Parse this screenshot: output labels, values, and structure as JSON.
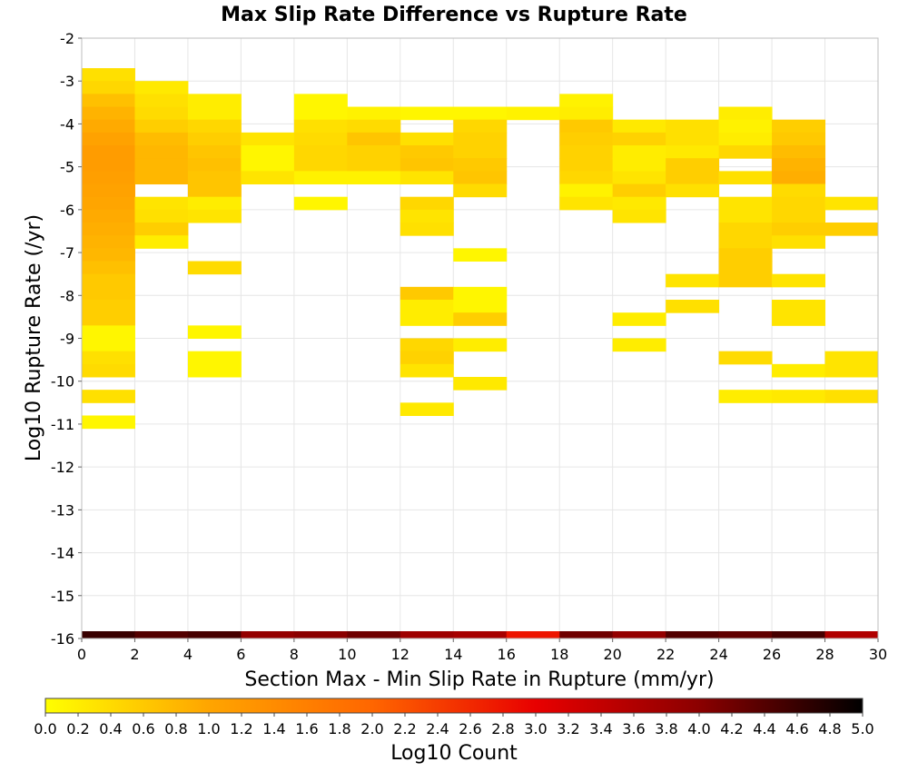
{
  "chart_data": {
    "type": "heatmap",
    "title": "Max Slip Rate Difference vs Rupture Rate",
    "xlabel": "Section Max - Min Slip Rate in Rupture (mm/yr)",
    "ylabel": "Log10 Rupture Rate (/yr)",
    "xlim": [
      0,
      30
    ],
    "ylim": [
      -16,
      -2
    ],
    "x_ticks": [
      "0",
      "2",
      "4",
      "6",
      "8",
      "10",
      "12",
      "14",
      "16",
      "18",
      "20",
      "22",
      "24",
      "26",
      "28",
      "30"
    ],
    "y_ticks": [
      "-2",
      "-3",
      "-4",
      "-5",
      "-6",
      "-7",
      "-8",
      "-9",
      "-10",
      "-11",
      "-12",
      "-13",
      "-14",
      "-15",
      "-16"
    ],
    "x_bin_width": 2,
    "y_bin_height": 0.3,
    "grid": true,
    "colorbar": {
      "label": "Log10 Count",
      "range": [
        0,
        5
      ],
      "ticks": [
        "0.0",
        "0.2",
        "0.4",
        "0.6",
        "0.8",
        "1.0",
        "1.2",
        "1.4",
        "1.6",
        "1.8",
        "2.0",
        "2.2",
        "2.4",
        "2.6",
        "2.8",
        "3.0",
        "3.2",
        "3.4",
        "3.6",
        "3.8",
        "4.0",
        "4.2",
        "4.4",
        "4.6",
        "4.8",
        "5.0"
      ],
      "colors": [
        "#ffff00",
        "#ffa500",
        "#ff6600",
        "#e80000",
        "#8b0000",
        "#000000"
      ]
    },
    "bottom_row": {
      "label": "-16",
      "values": [
        4.6,
        4.4,
        4.5,
        3.9,
        4.0,
        4.2,
        3.8,
        3.7,
        2.8,
        4.2,
        3.9,
        4.4,
        4.3,
        4.5,
        3.6
      ]
    },
    "columns": [
      {
        "x": 0,
        "cells": [
          [
            -2.85,
            0.35
          ],
          [
            -3.15,
            0.45
          ],
          [
            -3.45,
            0.7
          ],
          [
            -3.75,
            0.85
          ],
          [
            -4.05,
            0.95
          ],
          [
            -4.35,
            1.05
          ],
          [
            -4.65,
            1.15
          ],
          [
            -4.95,
            1.15
          ],
          [
            -5.25,
            1.1
          ],
          [
            -5.55,
            1.05
          ],
          [
            -5.85,
            1.0
          ],
          [
            -6.15,
            0.95
          ],
          [
            -6.45,
            0.9
          ],
          [
            -6.75,
            0.85
          ],
          [
            -7.05,
            0.8
          ],
          [
            -7.35,
            0.7
          ],
          [
            -7.65,
            0.6
          ],
          [
            -7.95,
            0.6
          ],
          [
            -8.25,
            0.55
          ],
          [
            -8.55,
            0.55
          ],
          [
            -8.85,
            0.1
          ],
          [
            -9.15,
            0.1
          ],
          [
            -9.45,
            0.35
          ],
          [
            -9.75,
            0.4
          ],
          [
            -10.35,
            0.35
          ],
          [
            -10.95,
            0.1
          ]
        ]
      },
      {
        "x": 2,
        "cells": [
          [
            -3.15,
            0.25
          ],
          [
            -3.45,
            0.35
          ],
          [
            -3.75,
            0.4
          ],
          [
            -4.05,
            0.55
          ],
          [
            -4.35,
            0.75
          ],
          [
            -4.65,
            0.8
          ],
          [
            -4.95,
            0.8
          ],
          [
            -5.25,
            0.8
          ],
          [
            -5.85,
            0.3
          ],
          [
            -6.15,
            0.35
          ],
          [
            -6.45,
            0.55
          ],
          [
            -6.75,
            0.2
          ]
        ]
      },
      {
        "x": 4,
        "cells": [
          [
            -3.45,
            0.2
          ],
          [
            -3.75,
            0.2
          ],
          [
            -4.05,
            0.45
          ],
          [
            -4.35,
            0.55
          ],
          [
            -4.65,
            0.65
          ],
          [
            -4.95,
            0.7
          ],
          [
            -5.25,
            0.65
          ],
          [
            -5.55,
            0.65
          ],
          [
            -5.85,
            0.2
          ],
          [
            -6.15,
            0.3
          ],
          [
            -7.35,
            0.4
          ],
          [
            -8.85,
            0.1
          ],
          [
            -9.45,
            0.1
          ],
          [
            -9.75,
            0.1
          ]
        ]
      },
      {
        "x": 6,
        "cells": [
          [
            -4.35,
            0.3
          ],
          [
            -4.65,
            0.1
          ],
          [
            -4.95,
            0.1
          ],
          [
            -5.25,
            0.3
          ]
        ]
      },
      {
        "x": 8,
        "cells": [
          [
            -3.45,
            0.1
          ],
          [
            -3.75,
            0.1
          ],
          [
            -4.05,
            0.35
          ],
          [
            -4.35,
            0.4
          ],
          [
            -4.65,
            0.45
          ],
          [
            -4.95,
            0.45
          ],
          [
            -5.25,
            0.15
          ],
          [
            -5.85,
            0.1
          ]
        ]
      },
      {
        "x": 10,
        "cells": [
          [
            -3.75,
            0.15
          ],
          [
            -4.05,
            0.4
          ],
          [
            -4.35,
            0.65
          ],
          [
            -4.65,
            0.5
          ],
          [
            -4.95,
            0.5
          ],
          [
            -5.25,
            0.15
          ]
        ]
      },
      {
        "x": 12,
        "cells": [
          [
            -3.75,
            0.1
          ],
          [
            -4.35,
            0.35
          ],
          [
            -4.65,
            0.6
          ],
          [
            -4.95,
            0.65
          ],
          [
            -5.25,
            0.3
          ],
          [
            -5.85,
            0.45
          ],
          [
            -6.15,
            0.3
          ],
          [
            -6.45,
            0.35
          ],
          [
            -7.95,
            0.6
          ],
          [
            -8.25,
            0.2
          ],
          [
            -8.55,
            0.2
          ],
          [
            -9.15,
            0.45
          ],
          [
            -9.45,
            0.5
          ],
          [
            -9.75,
            0.3
          ],
          [
            -10.65,
            0.25
          ]
        ]
      },
      {
        "x": 14,
        "cells": [
          [
            -3.75,
            0.1
          ],
          [
            -4.05,
            0.45
          ],
          [
            -4.35,
            0.5
          ],
          [
            -4.65,
            0.5
          ],
          [
            -4.95,
            0.6
          ],
          [
            -5.25,
            0.65
          ],
          [
            -5.55,
            0.4
          ],
          [
            -7.05,
            0.1
          ],
          [
            -7.95,
            0.1
          ],
          [
            -8.25,
            0.1
          ],
          [
            -8.55,
            0.55
          ],
          [
            -9.15,
            0.2
          ],
          [
            -10.05,
            0.25
          ]
        ]
      },
      {
        "x": 16,
        "cells": [
          [
            -3.75,
            0.15
          ]
        ]
      },
      {
        "x": 18,
        "cells": [
          [
            -3.45,
            0.15
          ],
          [
            -3.75,
            0.2
          ],
          [
            -4.05,
            0.6
          ],
          [
            -4.35,
            0.55
          ],
          [
            -4.65,
            0.5
          ],
          [
            -4.95,
            0.5
          ],
          [
            -5.25,
            0.45
          ],
          [
            -5.55,
            0.15
          ],
          [
            -5.85,
            0.3
          ]
        ]
      },
      {
        "x": 20,
        "cells": [
          [
            -4.05,
            0.25
          ],
          [
            -4.35,
            0.5
          ],
          [
            -4.65,
            0.2
          ],
          [
            -4.95,
            0.2
          ],
          [
            -5.25,
            0.3
          ],
          [
            -5.55,
            0.55
          ],
          [
            -5.85,
            0.25
          ],
          [
            -6.15,
            0.3
          ],
          [
            -8.55,
            0.2
          ],
          [
            -9.15,
            0.2
          ]
        ]
      },
      {
        "x": 22,
        "cells": [
          [
            -4.05,
            0.35
          ],
          [
            -4.35,
            0.35
          ],
          [
            -4.65,
            0.25
          ],
          [
            -4.95,
            0.55
          ],
          [
            -5.25,
            0.55
          ],
          [
            -5.55,
            0.35
          ],
          [
            -7.65,
            0.3
          ],
          [
            -8.25,
            0.35
          ]
        ]
      },
      {
        "x": 24,
        "cells": [
          [
            -3.75,
            0.2
          ],
          [
            -4.05,
            0.15
          ],
          [
            -4.35,
            0.2
          ],
          [
            -4.65,
            0.45
          ],
          [
            -5.25,
            0.35
          ],
          [
            -5.85,
            0.3
          ],
          [
            -6.15,
            0.3
          ],
          [
            -6.45,
            0.45
          ],
          [
            -6.75,
            0.45
          ],
          [
            -7.05,
            0.55
          ],
          [
            -7.35,
            0.55
          ],
          [
            -7.65,
            0.55
          ],
          [
            -9.45,
            0.4
          ],
          [
            -10.35,
            0.2
          ]
        ]
      },
      {
        "x": 26,
        "cells": [
          [
            -4.05,
            0.55
          ],
          [
            -4.35,
            0.6
          ],
          [
            -4.65,
            0.75
          ],
          [
            -4.95,
            0.85
          ],
          [
            -5.25,
            0.9
          ],
          [
            -5.55,
            0.4
          ],
          [
            -5.85,
            0.45
          ],
          [
            -6.15,
            0.45
          ],
          [
            -6.45,
            0.55
          ],
          [
            -6.75,
            0.35
          ],
          [
            -7.65,
            0.3
          ],
          [
            -8.25,
            0.3
          ],
          [
            -8.55,
            0.3
          ],
          [
            -9.75,
            0.2
          ],
          [
            -10.35,
            0.25
          ]
        ]
      },
      {
        "x": 28,
        "cells": [
          [
            -5.85,
            0.3
          ],
          [
            -6.45,
            0.55
          ],
          [
            -9.45,
            0.3
          ],
          [
            -9.75,
            0.3
          ],
          [
            -10.35,
            0.35
          ]
        ]
      }
    ]
  }
}
